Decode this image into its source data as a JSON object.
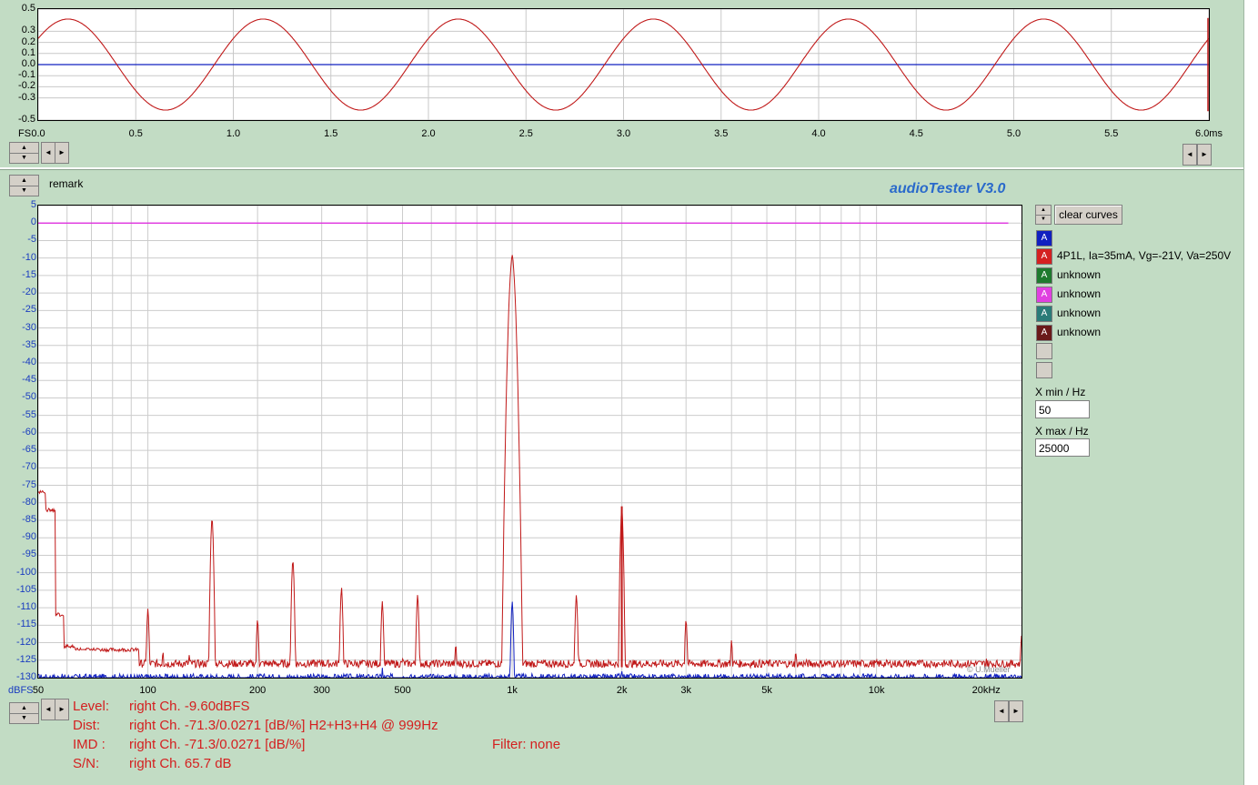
{
  "app": {
    "brand": "audioTester  V3.0",
    "remark": "remark",
    "watermark": "© U.Mueller"
  },
  "colors": {
    "background": "#c2dcc4",
    "red_trace": "#c01818",
    "blue_trace": "#1020c0",
    "magenta_trace": "#e020e0"
  },
  "icons": {
    "spin_up": "▲",
    "spin_down": "▼",
    "arrow_left": "◄",
    "arrow_right": "►"
  },
  "chart_data": [
    {
      "type": "line",
      "title": "",
      "xlabel": "ms",
      "ylabel": "FS",
      "xlim": [
        0,
        6
      ],
      "ylim": [
        -0.5,
        0.5
      ],
      "x_ticks": [
        "0.0",
        "0.5",
        "1.0",
        "1.5",
        "2.0",
        "2.5",
        "3.0",
        "3.5",
        "4.0",
        "4.5",
        "5.0",
        "5.5",
        "6.0ms"
      ],
      "y_ticks": [
        "0.5",
        "0.3",
        "0.2",
        "0.1",
        "0.0",
        "-0.1",
        "-0.2",
        "-0.3",
        "-0.5"
      ],
      "y_unit": "FS",
      "grid": true,
      "series": [
        {
          "color": "#c01818",
          "frequency_khz": 1,
          "amplitude": 0.41,
          "phase_deg": 35
        },
        {
          "color": "#1020c0",
          "constant": 0.0
        }
      ]
    },
    {
      "type": "line",
      "title": "",
      "xlabel": "Hz",
      "ylabel": "dBFS",
      "x_scale": "log",
      "xlim": [
        50,
        25000
      ],
      "ylim": [
        -130,
        5
      ],
      "y_unit": "dBFS",
      "x_ticks": [
        {
          "v": 50,
          "label": "50"
        },
        {
          "v": 100,
          "label": "100"
        },
        {
          "v": 200,
          "label": "200"
        },
        {
          "v": 300,
          "label": "300"
        },
        {
          "v": 500,
          "label": "500"
        },
        {
          "v": 1000,
          "label": "1k"
        },
        {
          "v": 2000,
          "label": "2k"
        },
        {
          "v": 3000,
          "label": "3k"
        },
        {
          "v": 5000,
          "label": "5k"
        },
        {
          "v": 10000,
          "label": "10k"
        },
        {
          "v": 20000,
          "label": "20kHz"
        }
      ],
      "y_ticks": [
        5,
        0,
        -5,
        -10,
        -15,
        -20,
        -25,
        -30,
        -35,
        -40,
        -45,
        -50,
        -55,
        -60,
        -65,
        -70,
        -75,
        -80,
        -85,
        -90,
        -95,
        -100,
        -105,
        -110,
        -115,
        -120,
        -125,
        -130
      ],
      "grid": true,
      "series": [
        {
          "name": "4P1L, Ia=35mA, Vg=-21V, Va=250V",
          "color": "#c01818",
          "floor": -126,
          "points": [
            [
              50,
              -77
            ],
            [
              53,
              -82
            ],
            [
              56,
              -112
            ],
            [
              60,
              -121
            ],
            [
              70,
              -122
            ],
            [
              90,
              -122
            ],
            [
              100,
              -110
            ],
            [
              110,
              -122
            ],
            [
              130,
              -123
            ],
            [
              150,
              -84
            ],
            [
              180,
              -126
            ],
            [
              200,
              -113
            ],
            [
              250,
              -96
            ],
            [
              300,
              -124
            ],
            [
              340,
              -104
            ],
            [
              440,
              -108
            ],
            [
              500,
              -124
            ],
            [
              550,
              -106
            ],
            [
              700,
              -120
            ],
            [
              1000,
              -9
            ],
            [
              1500,
              -106
            ],
            [
              1999,
              -81
            ],
            [
              3000,
              -113
            ],
            [
              4000,
              -119
            ],
            [
              6000,
              -122
            ],
            [
              20000,
              -124
            ],
            [
              25000,
              -118
            ]
          ]
        },
        {
          "name": "",
          "color": "#1020c0",
          "floor": -130,
          "points": [
            [
              440,
              -127
            ],
            [
              1000,
              -108
            ],
            [
              1999,
              -128
            ]
          ]
        },
        {
          "name": "",
          "color": "#e020e0",
          "constant": 0
        }
      ]
    }
  ],
  "time_axis_left_label": "FS",
  "channels": [
    {
      "letter": "A",
      "color": "#1020c0",
      "label": ""
    },
    {
      "letter": "A",
      "color": "#d42020",
      "label": "4P1L, Ia=35mA, Vg=-21V, Va=250V"
    },
    {
      "letter": "A",
      "color": "#1e7a2e",
      "label": "unknown"
    },
    {
      "letter": "A",
      "color": "#e040e0",
      "label": "unknown"
    },
    {
      "letter": "A",
      "color": "#2a7b78",
      "label": "unknown"
    },
    {
      "letter": "A",
      "color": "#6a1a1a",
      "label": "unknown"
    }
  ],
  "controls": {
    "clear_curves": "clear curves",
    "xmin_label": "X min / Hz",
    "xmin_value": "50",
    "xmax_label": "X max / Hz",
    "xmax_value": "25000"
  },
  "status": {
    "level_label": "Level:",
    "level_value": "right Ch. -9.60dBFS",
    "dist_label": "Dist:",
    "dist_value": "right Ch. -71.3/0.0271 [dB/%] H2+H3+H4 @ 999Hz",
    "imd_label": "IMD  :",
    "imd_value": "right Ch. -71.3/0.0271 [dB/%]",
    "sn_label": "S/N:",
    "sn_value": "right Ch. 65.7 dB",
    "filter": "Filter: none"
  }
}
